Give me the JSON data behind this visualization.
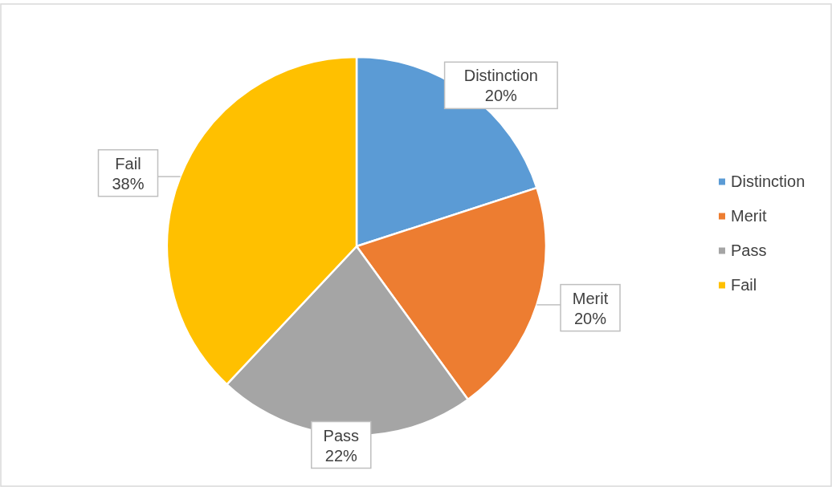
{
  "chart_data": {
    "type": "pie",
    "categories": [
      "Distinction",
      "Merit",
      "Pass",
      "Fail"
    ],
    "values": [
      20,
      20,
      22,
      38
    ],
    "colors": [
      "#5b9bd5",
      "#ed7d31",
      "#a5a5a5",
      "#ffc000"
    ],
    "value_labels": [
      "20%",
      "20%",
      "22%",
      "38%"
    ],
    "legend": "right"
  }
}
